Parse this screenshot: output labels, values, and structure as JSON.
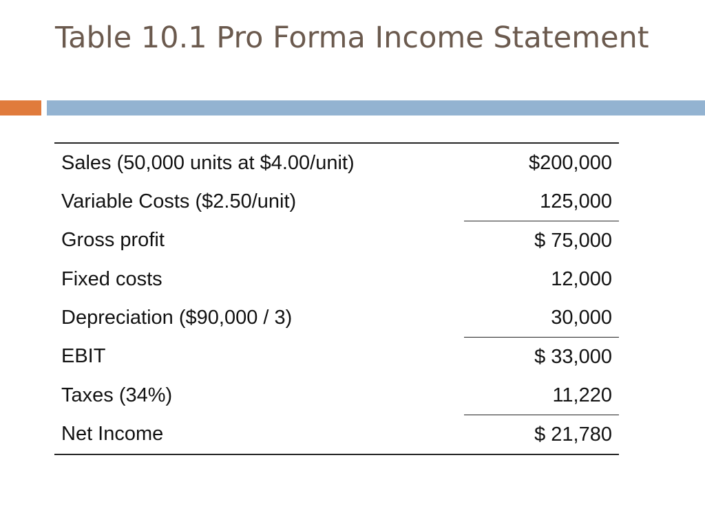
{
  "slide": {
    "title": "Table 10.1 Pro Forma Income Statement"
  },
  "colors": {
    "title_text": "#6b5a4e",
    "accent_orange": "#e07b3c",
    "accent_blue": "#93b3d1"
  },
  "table": {
    "rows": [
      {
        "label": "Sales (50,000 units at $4.00/unit)",
        "amount": "$200,000"
      },
      {
        "label": "Variable Costs ($2.50/unit)",
        "amount": "125,000"
      },
      {
        "label": "Gross profit",
        "amount": "$ 75,000"
      },
      {
        "label": "Fixed costs",
        "amount": "12,000"
      },
      {
        "label": "Depreciation ($90,000 / 3)",
        "amount": "30,000"
      },
      {
        "label": "EBIT",
        "amount": "$ 33,000"
      },
      {
        "label": "Taxes (34%)",
        "amount": "11,220"
      },
      {
        "label": "Net Income",
        "amount": "$ 21,780"
      }
    ]
  }
}
